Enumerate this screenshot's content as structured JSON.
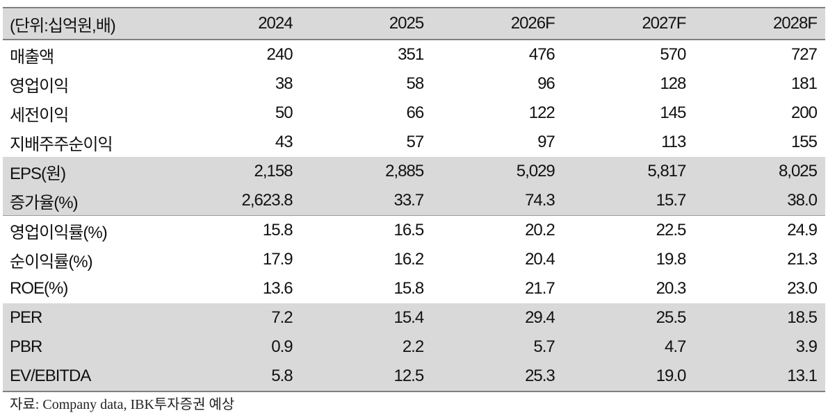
{
  "table": {
    "header": {
      "unit_label": "(단위:십억원,배)",
      "years": [
        "2024",
        "2025",
        "2026F",
        "2027F",
        "2028F"
      ]
    },
    "rows": [
      {
        "label": "매출액",
        "values": [
          "240",
          "351",
          "476",
          "570",
          "727"
        ]
      },
      {
        "label": "영업이익",
        "values": [
          "38",
          "58",
          "96",
          "128",
          "181"
        ]
      },
      {
        "label": "세전이익",
        "values": [
          "50",
          "66",
          "122",
          "145",
          "200"
        ]
      },
      {
        "label": "지배주주순이익",
        "values": [
          "43",
          "57",
          "97",
          "113",
          "155"
        ]
      },
      {
        "label": "EPS(원)",
        "values": [
          "2,158",
          "2,885",
          "5,029",
          "5,817",
          "8,025"
        ]
      },
      {
        "label": "증가율(%)",
        "values": [
          "2,623.8",
          "33.7",
          "74.3",
          "15.7",
          "38.0"
        ]
      },
      {
        "label": "영업이익률(%)",
        "values": [
          "15.8",
          "16.5",
          "20.2",
          "22.5",
          "24.9"
        ]
      },
      {
        "label": "순이익률(%)",
        "values": [
          "17.9",
          "16.2",
          "20.4",
          "19.8",
          "21.3"
        ]
      },
      {
        "label": "ROE(%)",
        "values": [
          "13.6",
          "15.8",
          "21.7",
          "20.3",
          "23.0"
        ]
      },
      {
        "label": "PER",
        "values": [
          "7.2",
          "15.4",
          "29.4",
          "25.5",
          "18.5"
        ]
      },
      {
        "label": "PBR",
        "values": [
          "0.9",
          "2.2",
          "5.7",
          "4.7",
          "3.9"
        ]
      },
      {
        "label": "EV/EBITDA",
        "values": [
          "5.8",
          "12.5",
          "25.3",
          "19.0",
          "13.1"
        ]
      }
    ]
  },
  "source": "자료: Company data, IBK투자증권 예상"
}
